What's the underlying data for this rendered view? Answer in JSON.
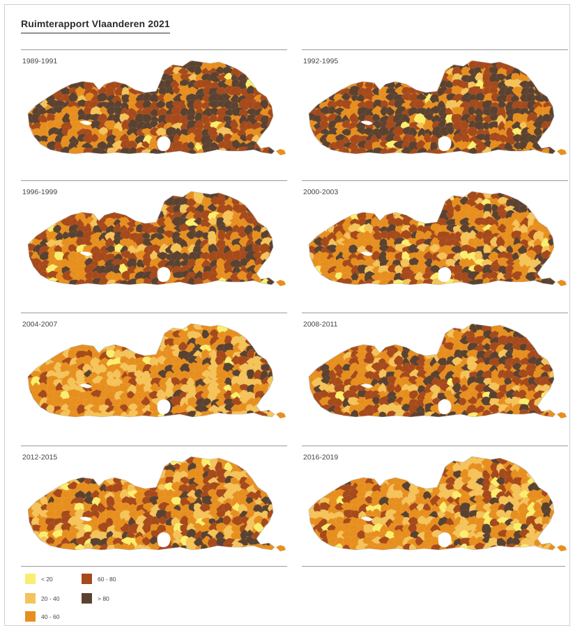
{
  "title": "Ruimterapport Vlaanderen 2021",
  "palette": {
    "c1": "#f9ee6e",
    "c2": "#f4c35a",
    "c3": "#e78f1e",
    "c4": "#a64a1b",
    "c5": "#5b4230",
    "enclave": "#ffffff"
  },
  "panels": [
    {
      "period": "1989-1991",
      "weights": [
        0.02,
        0.05,
        0.16,
        0.37,
        0.4
      ]
    },
    {
      "period": "1992-1995",
      "weights": [
        0.02,
        0.05,
        0.16,
        0.37,
        0.4
      ]
    },
    {
      "period": "1996-1999",
      "weights": [
        0.02,
        0.06,
        0.22,
        0.42,
        0.28
      ]
    },
    {
      "period": "2000-2003",
      "weights": [
        0.05,
        0.16,
        0.32,
        0.3,
        0.17
      ]
    },
    {
      "period": "2004-2007",
      "weights": [
        0.06,
        0.28,
        0.4,
        0.18,
        0.08
      ]
    },
    {
      "period": "2008-2011",
      "weights": [
        0.03,
        0.1,
        0.27,
        0.42,
        0.18
      ]
    },
    {
      "period": "2012-2015",
      "weights": [
        0.05,
        0.22,
        0.38,
        0.25,
        0.1
      ]
    },
    {
      "period": "2016-2019",
      "weights": [
        0.05,
        0.24,
        0.42,
        0.2,
        0.09
      ]
    }
  ],
  "legend": [
    {
      "label": "< 20",
      "color": "#f9ee6e"
    },
    {
      "label": "20 - 40",
      "color": "#f4c35a"
    },
    {
      "label": "40 - 60",
      "color": "#e78f1e"
    },
    {
      "label": "60 - 80",
      "color": "#a64a1b"
    },
    {
      "label": "> 80",
      "color": "#5b4230"
    }
  ]
}
